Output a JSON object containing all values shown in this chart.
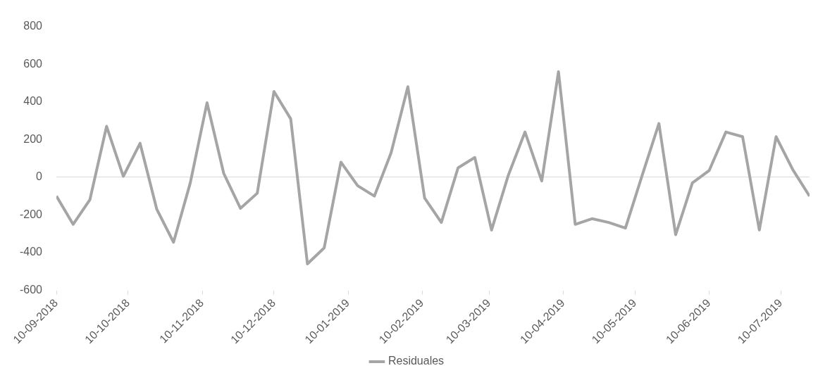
{
  "chart_data": {
    "type": "line",
    "x": [
      "2018-09-10",
      "2018-09-17",
      "2018-09-24",
      "2018-10-01",
      "2018-10-08",
      "2018-10-15",
      "2018-10-22",
      "2018-10-29",
      "2018-11-05",
      "2018-11-12",
      "2018-11-19",
      "2018-11-26",
      "2018-12-03",
      "2018-12-10",
      "2018-12-17",
      "2018-12-24",
      "2018-12-31",
      "2019-01-07",
      "2019-01-14",
      "2019-01-21",
      "2019-01-28",
      "2019-02-04",
      "2019-02-11",
      "2019-02-18",
      "2019-02-25",
      "2019-03-04",
      "2019-03-11",
      "2019-03-18",
      "2019-03-25",
      "2019-04-01",
      "2019-04-08",
      "2019-04-15",
      "2019-04-22",
      "2019-04-29",
      "2019-05-06",
      "2019-05-13",
      "2019-05-20",
      "2019-05-27",
      "2019-06-03",
      "2019-06-10",
      "2019-06-17",
      "2019-06-24",
      "2019-07-01",
      "2019-07-08",
      "2019-07-15",
      "2019-07-22"
    ],
    "series": [
      {
        "name": "Residuales",
        "color": "#a5a5a5",
        "values": [
          -100,
          -250,
          -120,
          270,
          5,
          180,
          -170,
          -345,
          -30,
          395,
          20,
          -165,
          -85,
          455,
          310,
          -460,
          -375,
          80,
          -45,
          -100,
          130,
          480,
          -110,
          -240,
          50,
          105,
          -280,
          10,
          240,
          -20,
          560,
          -250,
          -220,
          -240,
          -270,
          10,
          285,
          -305,
          -30,
          35,
          240,
          215,
          -280,
          215,
          40,
          -100
        ]
      }
    ],
    "xlim": [
      "2018-09-10",
      "2019-07-22"
    ],
    "xticks": [
      {
        "value": "2018-09-10",
        "label": "10-09-2018"
      },
      {
        "value": "2018-10-10",
        "label": "10-10-2018"
      },
      {
        "value": "2018-11-10",
        "label": "10-11-2018"
      },
      {
        "value": "2018-12-10",
        "label": "10-12-2018"
      },
      {
        "value": "2019-01-10",
        "label": "10-01-2019"
      },
      {
        "value": "2019-02-10",
        "label": "10-02-2019"
      },
      {
        "value": "2019-03-10",
        "label": "10-03-2019"
      },
      {
        "value": "2019-04-10",
        "label": "10-04-2019"
      },
      {
        "value": "2019-05-10",
        "label": "10-05-2019"
      },
      {
        "value": "2019-06-10",
        "label": "10-06-2019"
      },
      {
        "value": "2019-07-10",
        "label": "10-07-2019"
      }
    ],
    "ylim": [
      -600,
      800
    ],
    "yticks": [
      -600,
      -400,
      -200,
      0,
      200,
      400,
      600,
      800
    ],
    "legend": "bottom"
  }
}
